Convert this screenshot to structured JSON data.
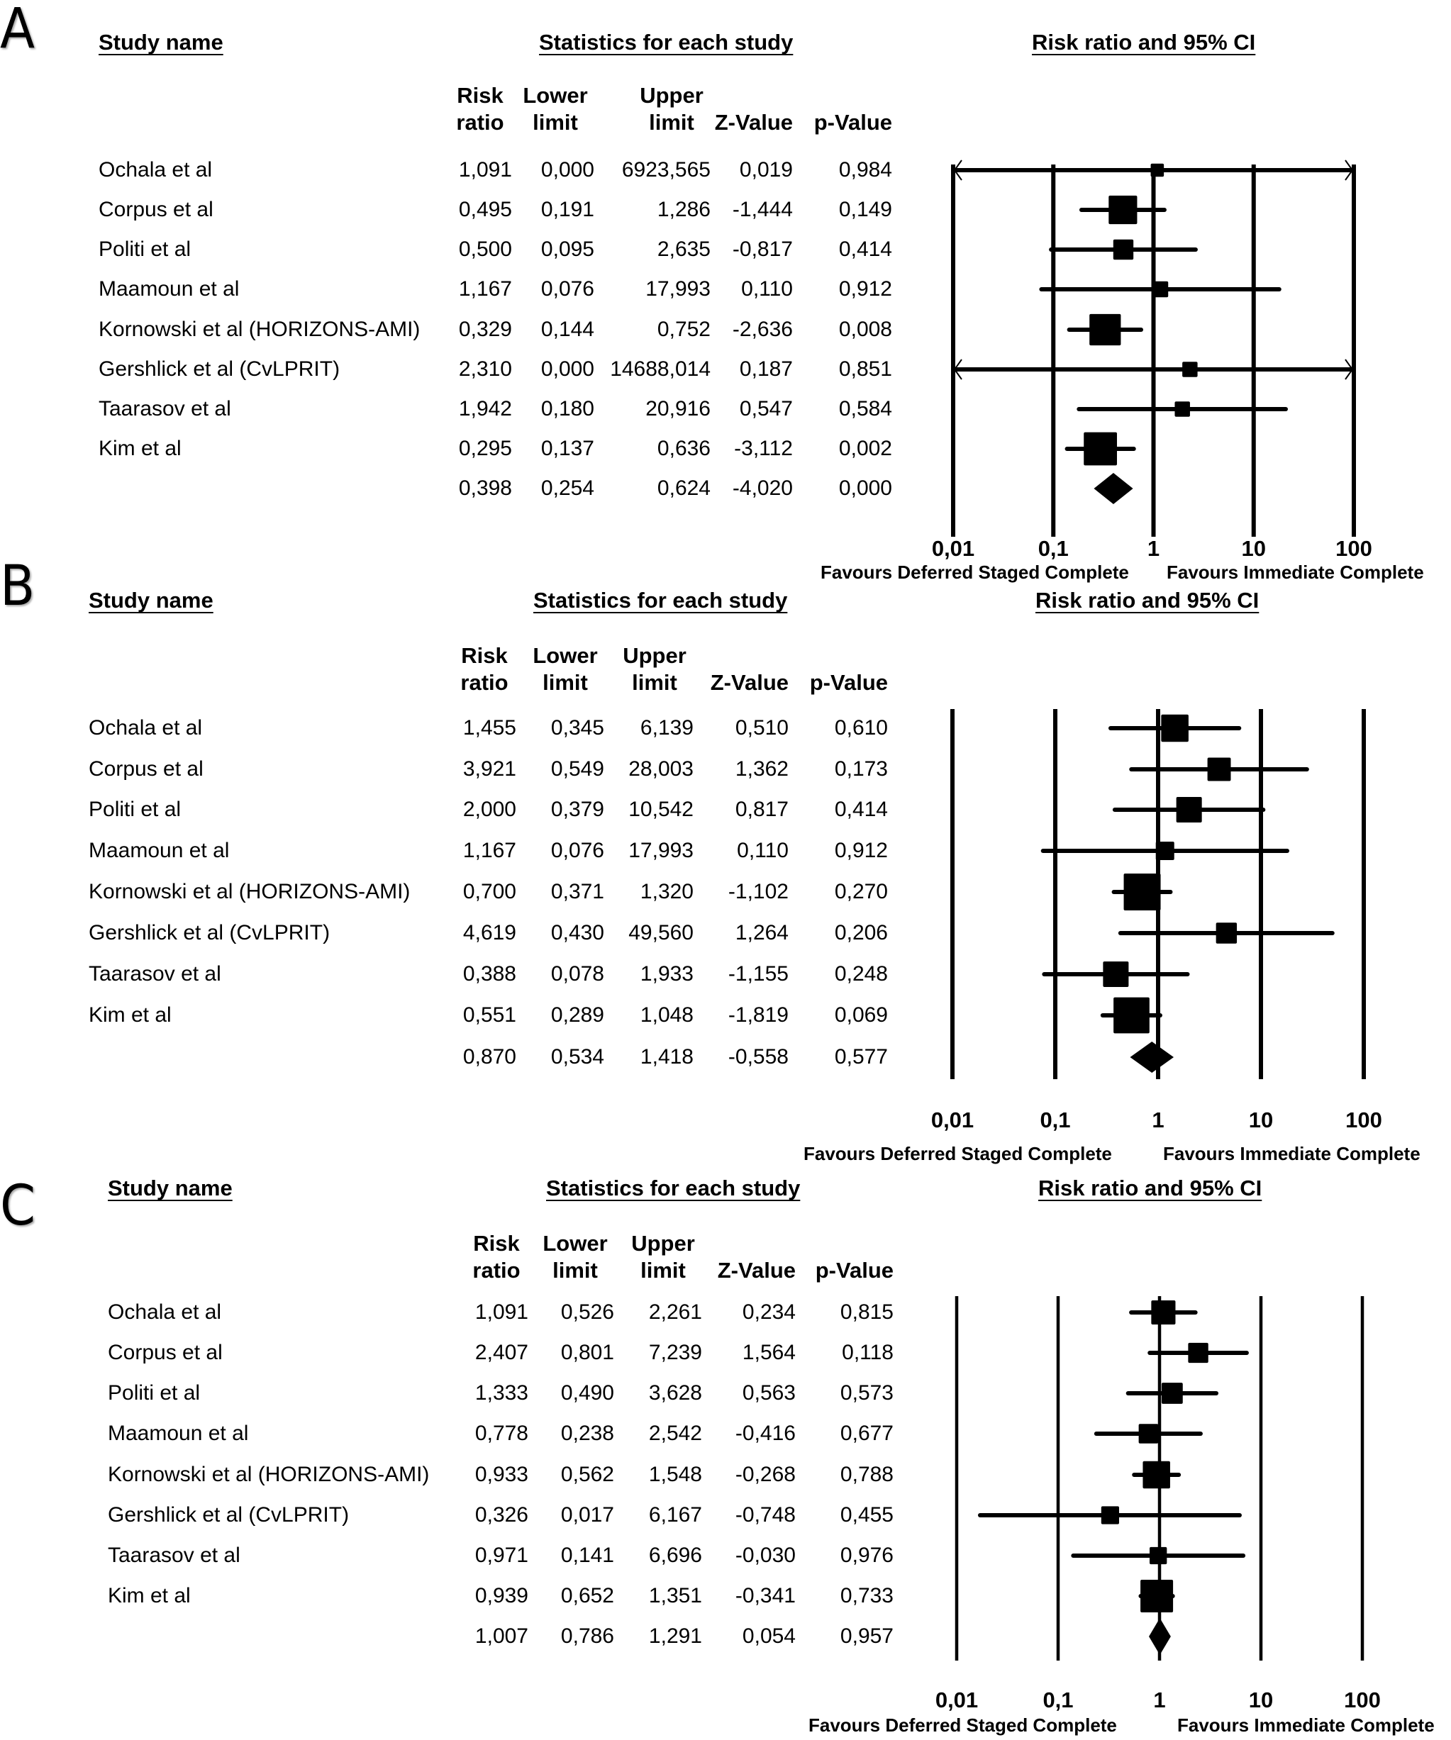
{
  "figure": {
    "columns": {
      "study_name": "Study name",
      "stats_group": "Statistics for each study",
      "plot_group": "Risk ratio and 95% CI",
      "risk_ratio": [
        "Risk",
        "ratio"
      ],
      "lower_limit": [
        "Lower",
        "limit"
      ],
      "upper_limit": [
        "Upper",
        "limit"
      ],
      "z_value": [
        "",
        "Z-Value"
      ],
      "p_value": [
        "",
        "p-Value"
      ]
    },
    "favours_left": "Favours Deferred Staged Complete",
    "favours_right": "Favours Immediate Complete"
  },
  "chart_data": [
    {
      "type": "forest",
      "panel": "A",
      "title": "",
      "xlabel": "Risk ratio and 95% CI",
      "x_scale": "log",
      "xlim": [
        0.01,
        100
      ],
      "ticks": [
        0.01,
        0.1,
        1,
        10,
        100
      ],
      "tick_labels": [
        "0,01",
        "0,1",
        "1",
        "10",
        "100"
      ],
      "grid": true,
      "rows": [
        {
          "study": "Ochala et al",
          "rr": "1,091",
          "lower": "0,000",
          "upper": "6923,565",
          "z": "0,019",
          "p": "0,984",
          "rr_v": 1.091,
          "lo_v": 0.0,
          "hi_v": 6923.565,
          "weight": 0.15,
          "arrow_left": true,
          "arrow_right": true
        },
        {
          "study": "Corpus et al",
          "rr": "0,495",
          "lower": "0,191",
          "upper": "1,286",
          "z": "-1,444",
          "p": "0,149",
          "rr_v": 0.495,
          "lo_v": 0.191,
          "hi_v": 1.286,
          "weight": 0.7
        },
        {
          "study": "Politi et al",
          "rr": "0,500",
          "lower": "0,095",
          "upper": "2,635",
          "z": "-0,817",
          "p": "0,414",
          "rr_v": 0.5,
          "lo_v": 0.095,
          "hi_v": 2.635,
          "weight": 0.35
        },
        {
          "study": "Maamoun et al",
          "rr": "1,167",
          "lower": "0,076",
          "upper": "17,993",
          "z": "0,110",
          "p": "0,912",
          "rr_v": 1.167,
          "lo_v": 0.076,
          "hi_v": 17.993,
          "weight": 0.22
        },
        {
          "study": "Kornowski et al (HORIZONS-AMI)",
          "rr": "0,329",
          "lower": "0,144",
          "upper": "0,752",
          "z": "-2,636",
          "p": "0,008",
          "rr_v": 0.329,
          "lo_v": 0.144,
          "hi_v": 0.752,
          "weight": 0.85
        },
        {
          "study": "Gershlick et al (CvLPRIT)",
          "rr": "2,310",
          "lower": "0,000",
          "upper": "14688,014",
          "z": "0,187",
          "p": "0,851",
          "rr_v": 2.31,
          "lo_v": 0.0,
          "hi_v": 14688.014,
          "weight": 0.2,
          "arrow_left": true,
          "arrow_right": true
        },
        {
          "study": "Taarasov et al",
          "rr": "1,942",
          "lower": "0,180",
          "upper": "20,916",
          "z": "0,547",
          "p": "0,584",
          "rr_v": 1.942,
          "lo_v": 0.18,
          "hi_v": 20.916,
          "weight": 0.2
        },
        {
          "study": "Kim et al",
          "rr": "0,295",
          "lower": "0,137",
          "upper": "0,636",
          "z": "-3,112",
          "p": "0,002",
          "rr_v": 0.295,
          "lo_v": 0.137,
          "hi_v": 0.636,
          "weight": 0.95
        }
      ],
      "summary": {
        "rr": "0,398",
        "lower": "0,254",
        "upper": "0,624",
        "z": "-4,020",
        "p": "0,000",
        "rr_v": 0.398,
        "lo_v": 0.254,
        "hi_v": 0.624
      }
    },
    {
      "type": "forest",
      "panel": "B",
      "title": "",
      "xlabel": "Risk ratio and 95% CI",
      "x_scale": "log",
      "xlim": [
        0.01,
        100
      ],
      "ticks": [
        0.01,
        0.1,
        1,
        10,
        100
      ],
      "tick_labels": [
        "0,01",
        "0,1",
        "1",
        "10",
        "100"
      ],
      "grid": true,
      "rows": [
        {
          "study": "Ochala et al",
          "rr": "1,455",
          "lower": "0,345",
          "upper": "6,139",
          "z": "0,510",
          "p": "0,610",
          "rr_v": 1.455,
          "lo_v": 0.345,
          "hi_v": 6.139,
          "weight": 0.55
        },
        {
          "study": "Corpus et al",
          "rr": "3,921",
          "lower": "0,549",
          "upper": "28,003",
          "z": "1,362",
          "p": "0,173",
          "rr_v": 3.921,
          "lo_v": 0.549,
          "hi_v": 28.003,
          "weight": 0.4
        },
        {
          "study": "Politi et al",
          "rr": "2,000",
          "lower": "0,379",
          "upper": "10,542",
          "z": "0,817",
          "p": "0,414",
          "rr_v": 2.0,
          "lo_v": 0.379,
          "hi_v": 10.542,
          "weight": 0.48
        },
        {
          "study": "Maamoun et al",
          "rr": "1,167",
          "lower": "0,076",
          "upper": "17,993",
          "z": "0,110",
          "p": "0,912",
          "rr_v": 1.167,
          "lo_v": 0.076,
          "hi_v": 17.993,
          "weight": 0.25
        },
        {
          "study": "Kornowski et al (HORIZONS-AMI)",
          "rr": "0,700",
          "lower": "0,371",
          "upper": "1,320",
          "z": "-1,102",
          "p": "0,270",
          "rr_v": 0.7,
          "lo_v": 0.371,
          "hi_v": 1.32,
          "weight": 1.0
        },
        {
          "study": "Gershlick et al (CvLPRIT)",
          "rr": "4,619",
          "lower": "0,430",
          "upper": "49,560",
          "z": "1,264",
          "p": "0,206",
          "rr_v": 4.619,
          "lo_v": 0.43,
          "hi_v": 49.56,
          "weight": 0.32
        },
        {
          "study": "Taarasov et al",
          "rr": "0,388",
          "lower": "0,078",
          "upper": "1,933",
          "z": "-1,155",
          "p": "0,248",
          "rr_v": 0.388,
          "lo_v": 0.078,
          "hi_v": 1.933,
          "weight": 0.48
        },
        {
          "study": "Kim et al",
          "rr": "0,551",
          "lower": "0,289",
          "upper": "1,048",
          "z": "-1,819",
          "p": "0,069",
          "rr_v": 0.551,
          "lo_v": 0.289,
          "hi_v": 1.048,
          "weight": 0.95
        }
      ],
      "summary": {
        "rr": "0,870",
        "lower": "0,534",
        "upper": "1,418",
        "z": "-0,558",
        "p": "0,577",
        "rr_v": 0.87,
        "lo_v": 0.534,
        "hi_v": 1.418
      }
    },
    {
      "type": "forest",
      "panel": "C",
      "title": "",
      "xlabel": "Risk ratio and 95% CI",
      "x_scale": "log",
      "xlim": [
        0.01,
        100
      ],
      "ticks": [
        0.01,
        0.1,
        1,
        10,
        100
      ],
      "tick_labels": [
        "0,01",
        "0,1",
        "1",
        "10",
        "100"
      ],
      "grid": true,
      "rows": [
        {
          "study": "Ochala et al",
          "rr": "1,091",
          "lower": "0,526",
          "upper": "2,261",
          "z": "0,234",
          "p": "0,815",
          "rr_v": 1.091,
          "lo_v": 0.526,
          "hi_v": 2.261,
          "weight": 0.55
        },
        {
          "study": "Corpus et al",
          "rr": "2,407",
          "lower": "0,801",
          "upper": "7,239",
          "z": "1,564",
          "p": "0,118",
          "rr_v": 2.407,
          "lo_v": 0.801,
          "hi_v": 7.239,
          "weight": 0.38
        },
        {
          "study": "Politi et al",
          "rr": "1,333",
          "lower": "0,490",
          "upper": "3,628",
          "z": "0,563",
          "p": "0,573",
          "rr_v": 1.333,
          "lo_v": 0.49,
          "hi_v": 3.628,
          "weight": 0.42
        },
        {
          "study": "Maamoun et al",
          "rr": "0,778",
          "lower": "0,238",
          "upper": "2,542",
          "z": "-0,416",
          "p": "0,677",
          "rr_v": 0.778,
          "lo_v": 0.238,
          "hi_v": 2.542,
          "weight": 0.36
        },
        {
          "study": "Kornowski et al (HORIZONS-AMI)",
          "rr": "0,933",
          "lower": "0,562",
          "upper": "1,548",
          "z": "-0,268",
          "p": "0,788",
          "rr_v": 0.933,
          "lo_v": 0.562,
          "hi_v": 1.548,
          "weight": 0.7
        },
        {
          "study": "Gershlick et al (CvLPRIT)",
          "rr": "0,326",
          "lower": "0,017",
          "upper": "6,167",
          "z": "-0,748",
          "p": "0,455",
          "rr_v": 0.326,
          "lo_v": 0.017,
          "hi_v": 6.167,
          "weight": 0.3
        },
        {
          "study": "Taarasov et al",
          "rr": "0,971",
          "lower": "0,141",
          "upper": "6,696",
          "z": "-0,030",
          "p": "0,976",
          "rr_v": 0.971,
          "lo_v": 0.141,
          "hi_v": 6.696,
          "weight": 0.28
        },
        {
          "study": "Kim et al",
          "rr": "0,939",
          "lower": "0,652",
          "upper": "1,351",
          "z": "-0,341",
          "p": "0,733",
          "rr_v": 0.939,
          "lo_v": 0.652,
          "hi_v": 1.351,
          "weight": 1.0
        }
      ],
      "summary": {
        "rr": "1,007",
        "lower": "0,786",
        "upper": "1,291",
        "z": "0,054",
        "p": "0,957",
        "rr_v": 1.007,
        "lo_v": 0.786,
        "hi_v": 1.291
      }
    }
  ]
}
